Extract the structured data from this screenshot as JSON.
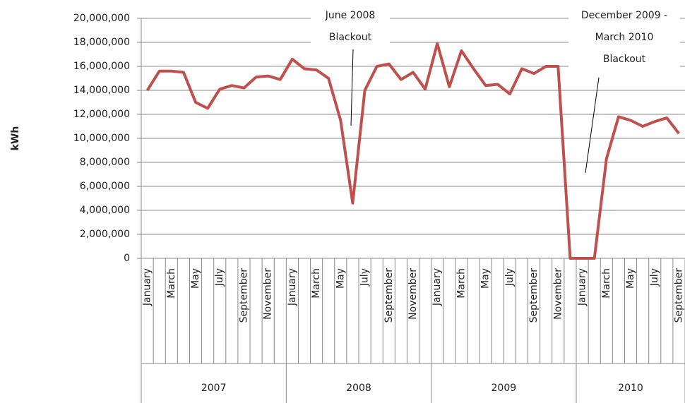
{
  "chart_data": {
    "type": "line",
    "y_label": "kWh",
    "categories": [
      "January",
      null,
      "March",
      null,
      "May",
      null,
      "July",
      null,
      "September",
      null,
      "November",
      null,
      "January",
      null,
      "March",
      null,
      "May",
      null,
      "July",
      null,
      "September",
      null,
      "November",
      null,
      "January",
      null,
      "March",
      null,
      "May",
      null,
      "July",
      null,
      "September",
      null,
      "November",
      null,
      "January",
      null,
      "March",
      null,
      "May",
      null,
      "July",
      null,
      "September"
    ],
    "x_groups": [
      "2007",
      "2008",
      "2009",
      "2010"
    ],
    "series": [
      {
        "color": "#c0504d",
        "values": [
          14000000,
          15600000,
          15600000,
          15500000,
          13000000,
          12500000,
          14100000,
          14400000,
          14200000,
          15100000,
          15200000,
          14900000,
          16600000,
          15800000,
          15700000,
          15000000,
          11500000,
          4600000,
          14000000,
          16000000,
          16200000,
          14900000,
          15500000,
          14100000,
          17900000,
          14300000,
          17300000,
          15800000,
          14400000,
          14500000,
          13700000,
          15800000,
          15400000,
          16000000,
          16000000,
          0,
          0,
          0,
          8300000,
          11800000,
          11500000,
          11000000,
          11400000,
          11700000,
          10400000
        ]
      }
    ],
    "ylim": [
      0,
      20000000
    ],
    "yticks": [
      0,
      {
        "value": 2000000,
        "label": "2,000,000"
      },
      {
        "value": 4000000,
        "label": "4,000,000"
      },
      {
        "value": 6000000,
        "label": "6,000,000"
      },
      {
        "value": 8000000,
        "label": "8,000,000"
      },
      {
        "value": 10000000,
        "label": "10,000,000"
      },
      {
        "value": 12000000,
        "label": "12,000,000"
      },
      {
        "value": 14000000,
        "label": "14,000,000"
      },
      {
        "value": 16000000,
        "label": "16,000,000"
      },
      {
        "value": 18000000,
        "label": "18,000,000"
      },
      {
        "value": 20000000,
        "label": "20,000,000"
      }
    ],
    "grid": true,
    "annotations": [
      {
        "lines": [
          "June 2008",
          "Blackout"
        ]
      },
      {
        "lines": [
          "December 2009 -",
          "March 2010",
          "Blackout"
        ]
      }
    ]
  }
}
